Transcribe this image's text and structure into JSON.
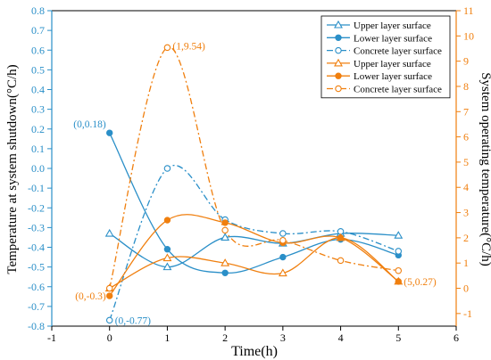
{
  "chart_data": {
    "type": "line",
    "title": "",
    "xlabel": "Time(h)",
    "ylabel_left": "Temperature at system shutdown(°C/h)",
    "ylabel_right": "System operating temperature(°C/h)",
    "xlim": [
      -1,
      6
    ],
    "ylim_left": [
      -0.8,
      0.8
    ],
    "ylim_right": [
      -1.5,
      11
    ],
    "x_ticks": [
      "-1",
      "0",
      "1",
      "2",
      "3",
      "4",
      "5",
      "6"
    ],
    "y_left_ticks": [
      "-0.8",
      "-0.7",
      "-0.6",
      "-0.5",
      "-0.4",
      "-0.3",
      "-0.2",
      "-0.1",
      "0.0",
      "0.1",
      "0.2",
      "0.3",
      "0.4",
      "0.5",
      "0.6",
      "0.7",
      "0.8"
    ],
    "y_right_ticks": [
      "-1",
      "0",
      "1",
      "2",
      "3",
      "4",
      "5",
      "6",
      "7",
      "8",
      "9",
      "10",
      "11"
    ],
    "grid": false,
    "legend_position": "top-right",
    "colors": {
      "left_axis": "#2a8fc8",
      "right_axis": "#f07f0e"
    },
    "series": [
      {
        "name": "Upper layer surface",
        "axis": "left",
        "color": "#2a8fc8",
        "marker": "triangle",
        "line": "solid",
        "x": [
          0,
          1,
          2,
          3,
          4,
          5
        ],
        "y": [
          -0.33,
          -0.5,
          -0.35,
          -0.38,
          -0.33,
          -0.34
        ]
      },
      {
        "name": "Lower layer surface",
        "axis": "left",
        "color": "#2a8fc8",
        "marker": "circle-filled",
        "line": "solid",
        "x": [
          0,
          1,
          2,
          3,
          4,
          5
        ],
        "y": [
          0.18,
          -0.41,
          -0.53,
          -0.45,
          -0.36,
          -0.44
        ]
      },
      {
        "name": "Concrete layer surface",
        "axis": "left",
        "color": "#2a8fc8",
        "marker": "circle-open",
        "line": "dashdot",
        "x": [
          0,
          1,
          2,
          3,
          4,
          5
        ],
        "y": [
          -0.77,
          0.0,
          -0.26,
          -0.33,
          -0.32,
          -0.42
        ]
      },
      {
        "name": "Upper layer surface",
        "axis": "right",
        "color": "#f07f0e",
        "marker": "triangle",
        "line": "solid",
        "x": [
          0,
          1,
          2,
          3,
          4,
          5
        ],
        "y": [
          0.0,
          1.2,
          1.0,
          0.6,
          2.0,
          0.27
        ]
      },
      {
        "name": "Lower layer surface",
        "axis": "right",
        "color": "#f07f0e",
        "marker": "circle-filled",
        "line": "solid",
        "x": [
          0,
          1,
          2,
          3,
          4,
          5
        ],
        "y": [
          -0.3,
          2.7,
          2.6,
          1.8,
          2.0,
          0.27
        ]
      },
      {
        "name": "Concrete layer surface",
        "axis": "right",
        "color": "#f07f0e",
        "marker": "circle-open",
        "line": "dashdot",
        "x": [
          0,
          1,
          2,
          3,
          4,
          5
        ],
        "y": [
          0.0,
          9.54,
          2.3,
          1.9,
          1.1,
          0.7
        ]
      }
    ],
    "annotations": [
      {
        "text": "(0,0.18)",
        "axis": "left",
        "x": 0,
        "y": 0.18,
        "color": "#2a8fc8",
        "anchor": "end"
      },
      {
        "text": "(0,-0.77)",
        "axis": "left",
        "x": 0,
        "y": -0.77,
        "color": "#2a8fc8",
        "anchor": "start"
      },
      {
        "text": "(1,9.54)",
        "axis": "right",
        "x": 1,
        "y": 9.54,
        "color": "#f07f0e",
        "anchor": "start"
      },
      {
        "text": "(0,-0.3)",
        "axis": "right",
        "x": 0,
        "y": -0.3,
        "color": "#f07f0e",
        "anchor": "end"
      },
      {
        "text": "(5,0.27)",
        "axis": "right",
        "x": 5,
        "y": 0.27,
        "color": "#f07f0e",
        "anchor": "start"
      }
    ]
  }
}
